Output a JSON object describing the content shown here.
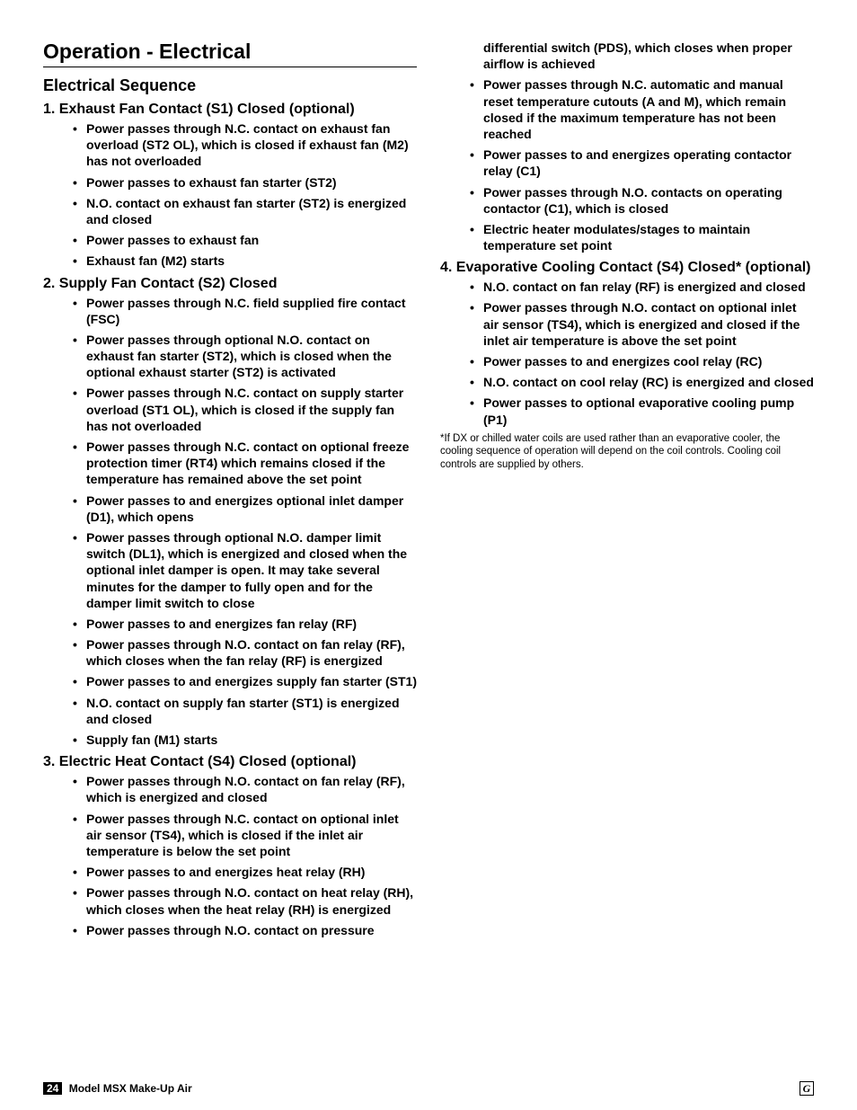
{
  "page": {
    "title": "Operation - Electrical",
    "subtitle": "Electrical Sequence",
    "footer_model": "Model MSX Make-Up Air",
    "page_number": "24"
  },
  "sections": {
    "s1": {
      "heading": "1.  Exhaust Fan Contact (S1) Closed (optional)",
      "items": [
        "Power passes through N.C. contact on exhaust fan overload (ST2 OL), which is closed if exhaust fan (M2) has not overloaded",
        "Power passes to exhaust fan starter (ST2)",
        "N.O. contact on exhaust fan starter (ST2) is energized and closed",
        "Power passes to exhaust fan",
        "Exhaust fan (M2) starts"
      ]
    },
    "s2": {
      "heading": "2.  Supply Fan Contact (S2) Closed",
      "items": [
        "Power passes through N.C. field supplied fire contact (FSC)",
        "Power passes through optional N.O. contact on exhaust fan starter (ST2), which is closed when the optional exhaust starter (ST2) is activated",
        "Power passes through N.C. contact on supply starter overload (ST1 OL), which is closed if the supply fan has not overloaded",
        "Power passes through N.C. contact on optional freeze protection timer (RT4) which remains closed if the temperature has remained above the set point",
        "Power passes to and energizes optional inlet damper (D1), which opens",
        "Power passes through optional N.O. damper limit switch (DL1), which is energized and closed when the optional inlet damper is open. It may take several minutes for the damper to fully open and for the damper limit switch to close",
        "Power passes to and energizes fan relay (RF)",
        "Power passes through N.O. contact on fan relay (RF), which closes when the fan relay (RF) is energized",
        "Power passes to and energizes supply fan starter (ST1)",
        "N.O. contact on supply fan starter (ST1) is energized and closed",
        "Supply fan (M1) starts"
      ]
    },
    "s3": {
      "heading": "3.  Electric Heat Contact (S4) Closed (optional)",
      "items_a": [
        "Power passes through N.O. contact on fan relay (RF), which is energized and closed",
        "Power passes through N.C. contact on optional inlet air sensor (TS4), which is closed if the inlet air temperature is below the set point",
        "Power passes to and energizes heat relay (RH)",
        "Power passes through N.O. contact on heat relay (RH), which closes when the heat relay (RH) is energized",
        "Power passes through N.O. contact on pressure"
      ],
      "items_b": [
        "differential switch (PDS), which closes when proper airflow is achieved",
        "Power passes through N.C. automatic and manual reset temperature cutouts (A and M), which remain closed if the maximum temperature has not been reached",
        "Power passes to and energizes operating contactor relay (C1)",
        "Power passes through N.O. contacts on operating contactor (C1), which is closed",
        "Electric heater modulates/stages to maintain temperature set point"
      ]
    },
    "s4": {
      "heading": "4.  Evaporative Cooling Contact (S4) Closed* (optional)",
      "items": [
        "N.O. contact on fan relay (RF) is energized and closed",
        "Power passes through N.O. contact on optional inlet air sensor (TS4), which is energized and closed if the inlet air temperature is above the set point",
        "Power passes to and energizes cool relay (RC)",
        "N.O. contact on cool relay (RC) is energized and closed",
        "Power passes to optional evaporative cooling pump (P1)"
      ]
    },
    "footnote": "*If DX or chilled water coils are used rather than an evaporative cooler, the cooling sequence of operation will depend on the coil controls. Cooling coil controls are supplied by others."
  }
}
